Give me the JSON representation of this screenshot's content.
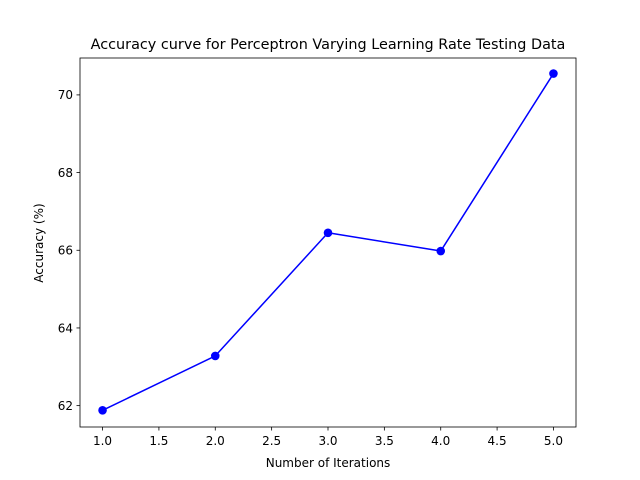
{
  "chart_data": {
    "type": "line",
    "title": "Accuracy curve for Perceptron  Varying Learning Rate Testing Data",
    "xlabel": "Number of Iterations",
    "ylabel": "Accuracy (%)",
    "x": [
      1,
      2,
      3,
      4,
      5
    ],
    "series": [
      {
        "values": [
          61.88,
          63.28,
          66.45,
          65.98,
          70.55
        ],
        "color": "#0000ff",
        "marker": "circle"
      }
    ],
    "xlim": [
      0.8,
      5.2
    ],
    "ylim": [
      61.45,
      70.95
    ],
    "xticks": [
      "1.0",
      "1.5",
      "2.0",
      "2.5",
      "3.0",
      "3.5",
      "4.0",
      "4.5",
      "5.0"
    ],
    "xtick_values": [
      1.0,
      1.5,
      2.0,
      2.5,
      3.0,
      3.5,
      4.0,
      4.5,
      5.0
    ],
    "yticks": [
      "62",
      "64",
      "66",
      "68",
      "70"
    ],
    "ytick_values": [
      62,
      64,
      66,
      68,
      70
    ],
    "grid": false,
    "legend": false
  }
}
